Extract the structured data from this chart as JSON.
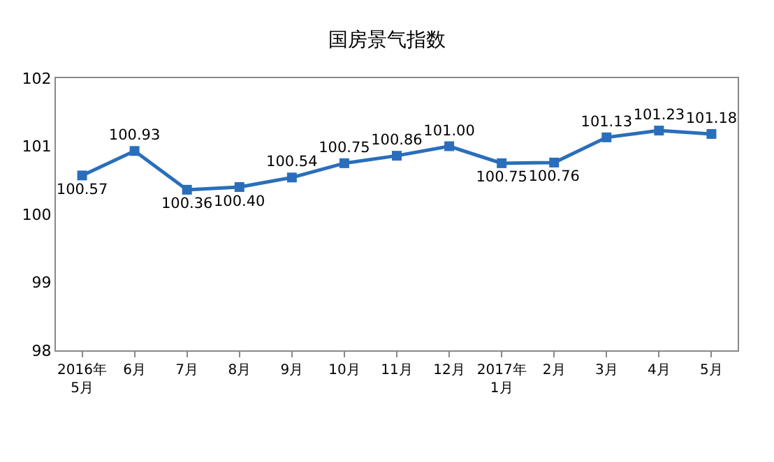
{
  "chart_data": {
    "type": "line",
    "title": "国房景气指数",
    "categories": [
      "2016年\n5月",
      "6月",
      "7月",
      "8月",
      "9月",
      "10月",
      "11月",
      "12月",
      "2017年\n1月",
      "2月",
      "3月",
      "4月",
      "5月"
    ],
    "series": [
      {
        "color": "#2a6ebb",
        "values": [
          100.57,
          100.93,
          100.36,
          100.4,
          100.54,
          100.75,
          100.86,
          101.0,
          100.75,
          100.76,
          101.13,
          101.23,
          101.18
        ],
        "value_labels": [
          "100.57",
          "100.93",
          "100.36",
          "100.40",
          "100.54",
          "100.75",
          "100.86",
          "101.00",
          "100.75",
          "100.76",
          "101.13",
          "101.23",
          "101.18"
        ]
      }
    ],
    "ylim": [
      98,
      102
    ],
    "yticks": [
      98,
      99,
      100,
      101,
      102
    ],
    "legend": false,
    "marker": "square",
    "line_style": "solid"
  }
}
